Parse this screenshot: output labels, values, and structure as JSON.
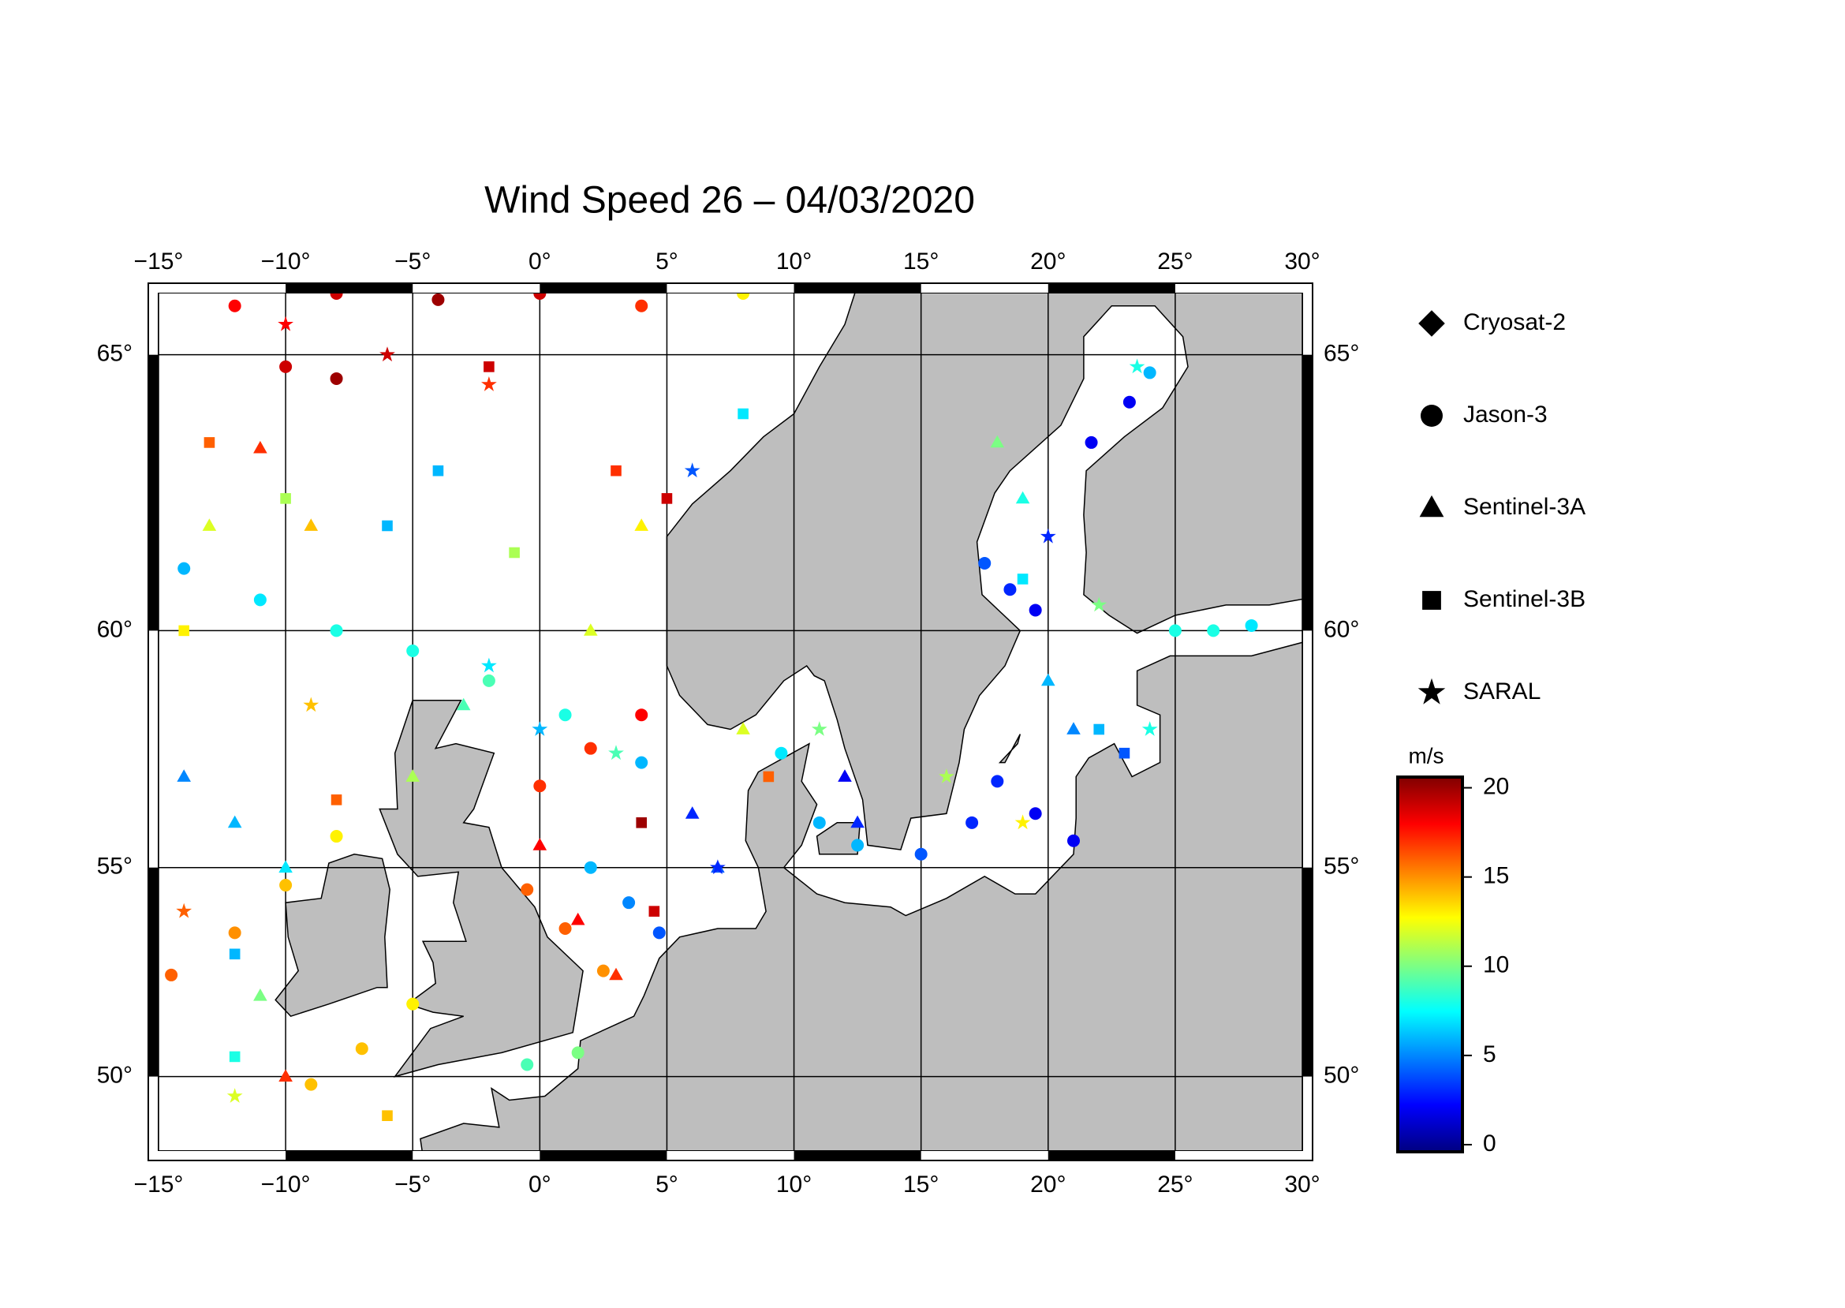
{
  "chart_data": {
    "type": "scatter",
    "title": "Wind Speed 26 – 04/03/2020",
    "projection": "mercator",
    "xlim": [
      -15,
      30
    ],
    "ylim": [
      48.1,
      66.0
    ],
    "xticks": [
      {
        "value": -15,
        "label": "−15°"
      },
      {
        "value": -10,
        "label": "−10°"
      },
      {
        "value": -5,
        "label": "−5°"
      },
      {
        "value": 0,
        "label": "0°"
      },
      {
        "value": 5,
        "label": "5°"
      },
      {
        "value": 10,
        "label": "10°"
      },
      {
        "value": 15,
        "label": "15°"
      },
      {
        "value": 20,
        "label": "20°"
      },
      {
        "value": 25,
        "label": "25°"
      },
      {
        "value": 30,
        "label": "30°"
      }
    ],
    "yticks": [
      {
        "value": 50,
        "label": "50°"
      },
      {
        "value": 55,
        "label": "55°"
      },
      {
        "value": 60,
        "label": "60°"
      },
      {
        "value": 65,
        "label": "65°"
      }
    ],
    "grid": true,
    "colorbar": {
      "label": "m/s",
      "colormap": "jet",
      "clim": [
        -0.4,
        20.6
      ],
      "ticks": [
        0,
        5,
        10,
        15,
        20
      ]
    },
    "series": [
      {
        "name": "Cryosat-2",
        "marker": "diamond",
        "x": [],
        "y": [],
        "values": []
      },
      {
        "name": "Jason-3",
        "marker": "circle",
        "x": [
          -12,
          -8,
          -4,
          0,
          4,
          8,
          -10,
          -8,
          -14,
          -11,
          -8,
          -5,
          -2,
          1,
          4,
          -14.5,
          -12,
          -10,
          -8,
          -9,
          -7,
          -5,
          0,
          2,
          4,
          -0.5,
          1,
          2.5,
          2,
          3.5,
          4.7,
          15,
          17,
          18,
          19.5,
          21,
          17.5,
          18.5,
          19.5,
          21.7,
          23.2,
          24,
          25,
          26.5,
          28,
          9.5,
          11,
          12.5,
          -0.5,
          1.5
        ],
        "y": [
          65.8,
          66,
          65.9,
          66,
          65.8,
          66,
          64.8,
          64.6,
          61.2,
          60.6,
          60,
          59.6,
          59,
          58.3,
          57.3,
          52.5,
          53.5,
          54.6,
          55.7,
          49.8,
          50.7,
          51.8,
          56.8,
          57.6,
          58.3,
          54.5,
          53.6,
          52.6,
          55,
          54.2,
          53.5,
          55.3,
          56,
          56.9,
          56.2,
          55.6,
          61.3,
          60.8,
          60.4,
          63.5,
          64.2,
          64.7,
          60,
          60,
          60.1,
          57.5,
          56,
          55.5,
          50.3,
          50.6
        ],
        "values": [
          18,
          19,
          20,
          19,
          17,
          13,
          19,
          20,
          6,
          7,
          8,
          8,
          9,
          8,
          6,
          16,
          15,
          14,
          13,
          14,
          14,
          13,
          17,
          17,
          18,
          16,
          16,
          15,
          6,
          5,
          4,
          4,
          3,
          3,
          2,
          2,
          4,
          3,
          2,
          2,
          2,
          6,
          8,
          8,
          7,
          7,
          6,
          6,
          9,
          10
        ]
      },
      {
        "name": "Sentinel-3A",
        "marker": "triangle",
        "x": [
          -13,
          -11,
          -9,
          -14,
          -12,
          -10,
          -11,
          -10,
          6,
          7,
          0,
          1.5,
          3,
          12,
          12.5,
          20,
          21,
          18,
          19,
          -5,
          -3,
          2,
          4,
          8
        ],
        "y": [
          62,
          63.4,
          62,
          57,
          56,
          55,
          52,
          50,
          56.2,
          55,
          55.5,
          53.8,
          52.5,
          57,
          56,
          59,
          58,
          63.5,
          62.5,
          57,
          58.5,
          60,
          62,
          58
        ],
        "values": [
          12,
          17,
          14,
          5,
          6,
          7,
          10,
          17,
          3,
          4,
          18,
          18,
          17,
          2,
          3,
          6,
          5,
          10,
          8,
          11,
          9,
          12,
          13,
          12
        ]
      },
      {
        "name": "Sentinel-3B",
        "marker": "square",
        "x": [
          -13,
          -14,
          -10,
          -6,
          -4,
          -2,
          3,
          5,
          8,
          -12,
          -12,
          -6,
          4,
          4.5,
          -8,
          19,
          22,
          23,
          -1,
          9
        ],
        "y": [
          63.5,
          60,
          62.5,
          62,
          63,
          64.8,
          63,
          62.5,
          64,
          53,
          50.5,
          49,
          56,
          54,
          56.5,
          61,
          58,
          57.5,
          61.5,
          57
        ],
        "values": [
          16,
          13,
          11,
          6,
          6,
          19,
          17,
          19,
          7,
          6,
          8,
          14,
          20,
          19,
          16,
          7,
          6,
          4,
          11,
          16
        ]
      },
      {
        "name": "SARAL",
        "marker": "star",
        "x": [
          -10,
          -6,
          -2,
          -12,
          -9,
          -2,
          0,
          3,
          6,
          11,
          16,
          19,
          22,
          24,
          23.5,
          20,
          -14,
          7
        ],
        "y": [
          65.5,
          65,
          64.5,
          49.5,
          58.5,
          59.3,
          58,
          57.5,
          63,
          58,
          57,
          56,
          60.5,
          58,
          64.8,
          61.8,
          54,
          55
        ],
        "values": [
          18,
          19,
          17,
          12,
          14,
          7,
          6,
          9,
          4,
          10,
          11,
          13,
          10,
          8,
          8,
          3,
          16,
          3
        ]
      }
    ]
  }
}
